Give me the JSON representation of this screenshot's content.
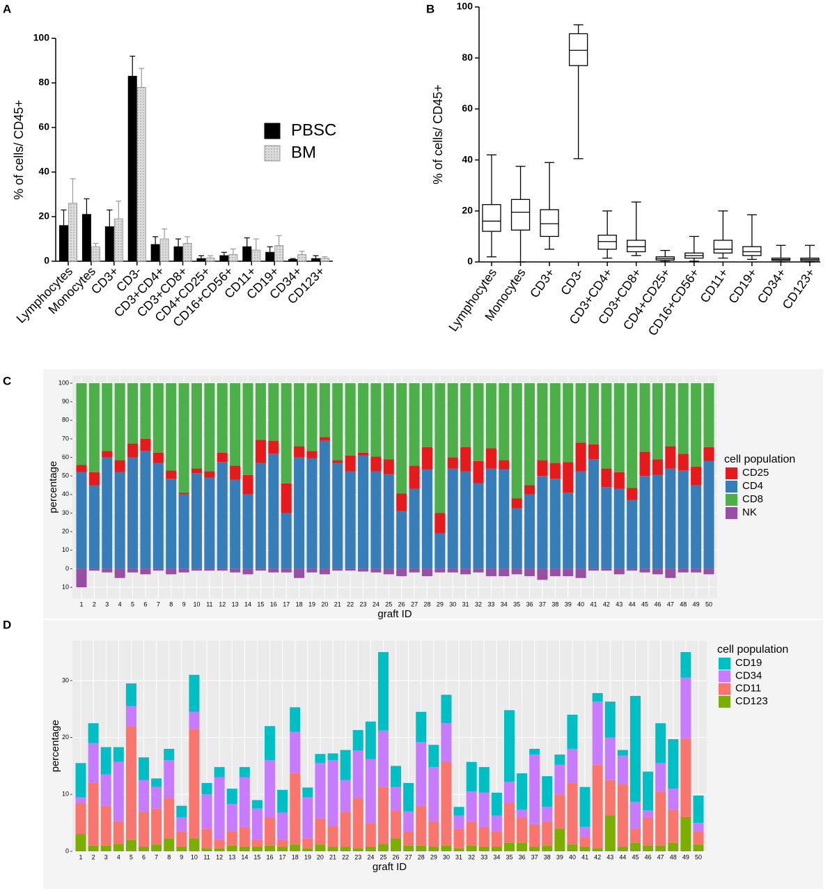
{
  "chart_data": [
    {
      "panel": "A",
      "type": "bar",
      "ylabel": "% of cells/ CD45+",
      "categories": [
        "Lymphocytes",
        "Monocytes",
        "CD3+",
        "CD3-",
        "CD3+CD4+",
        "CD3+CD8+",
        "CD4+CD25+",
        "CD16+CD56+",
        "CD11+",
        "CD19+",
        "CD34+",
        "CD123+"
      ],
      "series": [
        {
          "name": "PBSC",
          "color": "#000000",
          "edgecolor": "#000000",
          "values": [
            16,
            21,
            15.5,
            83,
            7.5,
            6.5,
            1.2,
            2.5,
            6.5,
            4,
            0.8,
            1.2
          ],
          "errors": [
            7,
            7,
            7.5,
            9,
            3.5,
            3.5,
            1.3,
            1.5,
            4,
            2.5,
            0.4,
            1.3
          ]
        },
        {
          "name": "BM",
          "color": "#d9d9d9",
          "edgecolor": "#999999",
          "values": [
            26,
            6.5,
            19,
            78,
            10,
            8,
            1.5,
            3,
            5,
            7,
            3,
            1.3
          ],
          "errors": [
            11,
            1.5,
            8,
            8.5,
            4.5,
            3,
            1,
            2.5,
            5,
            4.5,
            1.5,
            0.7
          ]
        }
      ],
      "ylim": [
        0,
        100
      ],
      "yticks": [
        0,
        20,
        40,
        60,
        80,
        100
      ]
    },
    {
      "panel": "B",
      "type": "box",
      "ylabel": "% of cells/ CD45+",
      "categories": [
        "Lymphocytes",
        "Monocytes",
        "CD3+",
        "CD3-",
        "CD3+CD4+",
        "CD3+CD8+",
        "CD4+CD25+",
        "CD16+CD56+",
        "CD11+",
        "CD19+",
        "CD34+",
        "CD123+"
      ],
      "min": [
        2,
        0,
        5,
        40.5,
        1.5,
        2.5,
        0.2,
        0.3,
        1.5,
        1,
        0,
        0
      ],
      "q1": [
        12,
        12.5,
        10,
        77,
        5,
        4,
        0.7,
        1.5,
        3.5,
        2.5,
        0.6,
        0.5
      ],
      "median": [
        16,
        19.5,
        15,
        83,
        8,
        6,
        1.3,
        2.5,
        5,
        4,
        1,
        1
      ],
      "q3": [
        22.5,
        24.5,
        20.5,
        89.5,
        10.5,
        8.5,
        2,
        3.5,
        8.5,
        6,
        1.5,
        1.5
      ],
      "max": [
        42,
        37.5,
        39,
        93,
        20,
        23.5,
        4.5,
        10,
        20,
        18.5,
        6.5,
        6.5
      ],
      "ylim": [
        0,
        100
      ],
      "yticks": [
        0,
        20,
        40,
        60,
        80,
        100
      ]
    },
    {
      "panel": "C",
      "type": "bar",
      "stacked": true,
      "xlabel": "graft ID",
      "ylabel": "percentage",
      "legend_title": "cell population",
      "grid": true,
      "categories": [
        1,
        2,
        3,
        4,
        5,
        6,
        7,
        8,
        9,
        10,
        11,
        12,
        13,
        14,
        15,
        16,
        17,
        18,
        19,
        20,
        21,
        22,
        23,
        24,
        25,
        26,
        27,
        28,
        29,
        30,
        31,
        32,
        33,
        34,
        35,
        36,
        37,
        38,
        39,
        40,
        41,
        42,
        43,
        44,
        45,
        46,
        47,
        48,
        49,
        50
      ],
      "stack_order": [
        1,
        0,
        2,
        3
      ],
      "series": [
        {
          "name": "CD25",
          "color": "#e41a1c",
          "values": [
            4,
            7,
            3.5,
            6.5,
            7.5,
            6.5,
            5.5,
            4.5,
            1,
            2.5,
            3.5,
            5,
            7.5,
            10.5,
            12.5,
            7,
            16,
            6,
            4,
            2,
            1.5,
            8.5,
            1.5,
            8,
            8,
            9.5,
            12.5,
            12,
            11,
            6,
            13,
            12,
            11,
            5,
            5.5,
            5,
            8.5,
            8.5,
            16.5,
            15.5,
            8,
            10,
            9,
            6.5,
            13,
            8.5,
            12,
            9,
            10,
            7.5
          ]
        },
        {
          "name": "CD4",
          "color": "#377eb8",
          "values": [
            52,
            45,
            60,
            52,
            60,
            63.5,
            57,
            48.5,
            40,
            51.5,
            49,
            57.5,
            48,
            40,
            57,
            62,
            30,
            60,
            59.5,
            69,
            57,
            52.5,
            61,
            52.5,
            51,
            31,
            43,
            53.5,
            19,
            54,
            52.5,
            46,
            54,
            53.5,
            32.5,
            40,
            50,
            48.5,
            41,
            52.5,
            59,
            44,
            43,
            37,
            50,
            50.5,
            54,
            53,
            45,
            58
          ]
        },
        {
          "name": "CD8",
          "color": "#4daf4a",
          "values": [
            44,
            48,
            36.5,
            41.5,
            32.5,
            30,
            37.5,
            47,
            59,
            46,
            47.5,
            37.5,
            44.5,
            49.5,
            30.5,
            31,
            54,
            34,
            36.5,
            29,
            41.5,
            39,
            37.5,
            39.5,
            41,
            59.5,
            44.5,
            34.5,
            70,
            40,
            34.5,
            42,
            35,
            41.5,
            62,
            55,
            41.5,
            43,
            42.5,
            32,
            33,
            46,
            48,
            56.5,
            37,
            41,
            34,
            38,
            45,
            34.5
          ]
        },
        {
          "name": "NK",
          "color": "#984ea3",
          "values": [
            -10,
            -1,
            -2,
            -5,
            -2,
            -3,
            -1,
            -3,
            -2,
            -1,
            -1,
            -1,
            -2,
            -3,
            -1,
            -2,
            -2,
            -5,
            -2,
            -3,
            -1,
            -1,
            -1.5,
            -2,
            -3,
            -4,
            -2,
            -4,
            -2,
            -2,
            -3,
            -2,
            -4,
            -4,
            -3,
            -4,
            -6,
            -4,
            -4,
            -5,
            -1,
            -1,
            -3,
            -1,
            -2,
            -3,
            -5,
            -2,
            -2,
            -3
          ]
        }
      ],
      "ylim": [
        -16,
        104
      ],
      "yticks": [
        {
          "value": -10,
          "label": "10"
        },
        0,
        10,
        20,
        30,
        40,
        50,
        60,
        70,
        80,
        90,
        100
      ]
    },
    {
      "panel": "D",
      "type": "bar",
      "stacked": true,
      "xlabel": "graft ID",
      "ylabel": "percentage",
      "legend_title": "cell population",
      "grid": true,
      "categories": [
        1,
        2,
        3,
        4,
        5,
        6,
        7,
        8,
        9,
        10,
        11,
        12,
        13,
        14,
        15,
        16,
        17,
        18,
        19,
        20,
        21,
        22,
        23,
        24,
        25,
        26,
        27,
        28,
        29,
        30,
        31,
        32,
        33,
        34,
        35,
        36,
        37,
        38,
        39,
        40,
        41,
        42,
        43,
        44,
        45,
        46,
        47,
        48,
        49,
        50
      ],
      "stack_order": [
        3,
        2,
        1,
        0
      ],
      "series": [
        {
          "name": "CD19",
          "color": "#00bfc4",
          "values": [
            6,
            3.5,
            4.8,
            2.6,
            4,
            4,
            1.5,
            2,
            2,
            6.5,
            2,
            1.8,
            2.7,
            1.8,
            1.5,
            6,
            4,
            4.3,
            1.7,
            1.6,
            1.2,
            5.3,
            3.6,
            6.6,
            13.8,
            3.7,
            5,
            5.3,
            3.9,
            5,
            1.5,
            5.2,
            4.5,
            4,
            12.6,
            6.4,
            1,
            5.4,
            1.8,
            6,
            7,
            1.5,
            6.3,
            1,
            18.6,
            6.8,
            7,
            8.7,
            4.5,
            4.8
          ]
        },
        {
          "name": "CD34",
          "color": "#c77cff",
          "values": [
            1,
            7,
            5.5,
            10.4,
            3.5,
            5.5,
            3.8,
            6.7,
            2.5,
            3,
            6,
            11,
            4.8,
            8.7,
            5.5,
            10,
            4.8,
            7.2,
            7.2,
            9.7,
            11.5,
            5.5,
            8.4,
            11.2,
            9.9,
            4.1,
            3.5,
            11.2,
            9.5,
            6.7,
            2.3,
            5.2,
            6,
            2.8,
            3.7,
            1.3,
            12.2,
            2.5,
            5.2,
            6,
            1.8,
            11.1,
            7.5,
            5,
            4.7,
            1.2,
            5,
            3.7,
            10.7,
            1.5
          ]
        },
        {
          "name": "CD11",
          "color": "#f8766d",
          "values": [
            5.5,
            11,
            7,
            4,
            20,
            6.2,
            6.3,
            7,
            2.7,
            19.2,
            3.5,
            1.5,
            2.5,
            3.5,
            1.2,
            5,
            1.2,
            12.6,
            1.8,
            4.6,
            3.7,
            6.2,
            8.8,
            4.2,
            10,
            4.9,
            2.5,
            7,
            4.5,
            14.8,
            3.5,
            4.3,
            3.5,
            2.7,
            7,
            4.5,
            4,
            4.3,
            6,
            10.8,
            1.7,
            14.7,
            6.2,
            11,
            2.5,
            5,
            9.5,
            5.8,
            13.8,
            2.3
          ]
        },
        {
          "name": "CD123",
          "color": "#7cae00",
          "values": [
            3,
            1,
            1,
            1.3,
            2,
            0.8,
            1.2,
            2.3,
            0.8,
            2.3,
            0.5,
            0.5,
            1,
            0.8,
            0.8,
            1,
            0.8,
            1.2,
            0.5,
            1.2,
            0.8,
            0.8,
            0.5,
            0.8,
            1.3,
            2.3,
            1,
            1,
            0.8,
            1,
            0.5,
            1,
            0.8,
            0.8,
            1.5,
            1.5,
            0.8,
            1,
            4,
            1.2,
            0.8,
            0.5,
            6.3,
            0.8,
            1.5,
            1,
            1,
            1.5,
            6,
            1.2
          ]
        }
      ],
      "ylim": [
        0,
        37
      ],
      "yticks": [
        0,
        10,
        20,
        30
      ]
    }
  ]
}
